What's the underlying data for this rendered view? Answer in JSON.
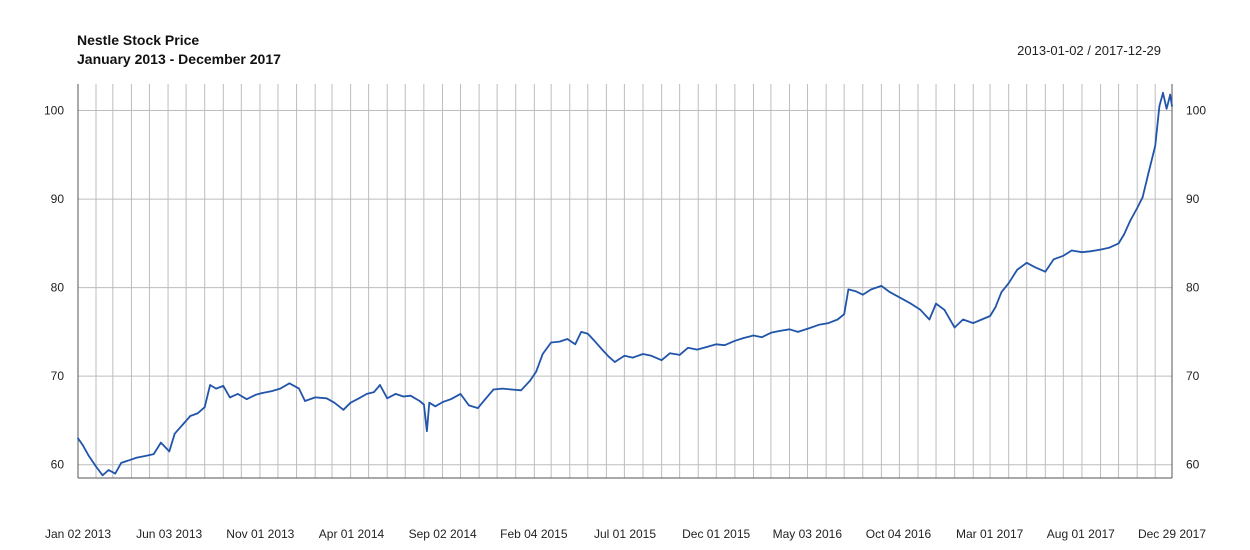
{
  "header": {
    "title": "Nestle Stock Price",
    "subtitle": "January 2013 - December 2017",
    "date_range": "2013-01-02 / 2017-12-29"
  },
  "colors": {
    "series": "#2255aa",
    "grid": "#bdbdbd",
    "axis": "#555555"
  },
  "chart_data": {
    "type": "line",
    "title": "Nestle Stock Price",
    "subtitle": "January 2013 - December 2017",
    "xlabel": "",
    "ylabel": "",
    "ylim": [
      58.5,
      103
    ],
    "yticks": [
      60,
      70,
      80,
      90,
      100
    ],
    "y_axis_both_sides": true,
    "x_tick_labels": [
      "Jan 02 2013",
      "Jun 03 2013",
      "Nov 01 2013",
      "Apr 01 2014",
      "Sep 02 2014",
      "Feb 04 2015",
      "Jul 01 2015",
      "Dec 01 2015",
      "May 03 2016",
      "Oct 04 2016",
      "Mar 01 2017",
      "Aug 01 2017",
      "Dec 29 2017"
    ],
    "grid": true,
    "legend": "none",
    "series": [
      {
        "values": [
          [
            "2013-01-02",
            63.0
          ],
          [
            "2013-01-10",
            62.2
          ],
          [
            "2013-01-20",
            61.0
          ],
          [
            "2013-02-01",
            59.8
          ],
          [
            "2013-02-12",
            58.8
          ],
          [
            "2013-02-22",
            59.4
          ],
          [
            "2013-03-05",
            59.0
          ],
          [
            "2013-03-15",
            60.2
          ],
          [
            "2013-03-28",
            60.5
          ],
          [
            "2013-04-10",
            60.8
          ],
          [
            "2013-04-25",
            61.0
          ],
          [
            "2013-05-08",
            61.2
          ],
          [
            "2013-05-20",
            62.5
          ],
          [
            "2013-06-03",
            61.5
          ],
          [
            "2013-06-12",
            63.5
          ],
          [
            "2013-06-25",
            64.5
          ],
          [
            "2013-07-08",
            65.5
          ],
          [
            "2013-07-20",
            65.8
          ],
          [
            "2013-08-01",
            66.5
          ],
          [
            "2013-08-10",
            69.0
          ],
          [
            "2013-08-20",
            68.6
          ],
          [
            "2013-09-01",
            68.9
          ],
          [
            "2013-09-12",
            67.6
          ],
          [
            "2013-09-25",
            68.0
          ],
          [
            "2013-10-10",
            67.4
          ],
          [
            "2013-10-25",
            67.9
          ],
          [
            "2013-11-05",
            68.1
          ],
          [
            "2013-11-20",
            68.3
          ],
          [
            "2013-12-05",
            68.6
          ],
          [
            "2013-12-20",
            69.2
          ],
          [
            "2014-01-05",
            68.6
          ],
          [
            "2014-01-15",
            67.2
          ],
          [
            "2014-02-01",
            67.6
          ],
          [
            "2014-02-20",
            67.5
          ],
          [
            "2014-03-05",
            67.0
          ],
          [
            "2014-03-20",
            66.2
          ],
          [
            "2014-04-01",
            67.0
          ],
          [
            "2014-04-15",
            67.5
          ],
          [
            "2014-04-28",
            68.0
          ],
          [
            "2014-05-10",
            68.2
          ],
          [
            "2014-05-20",
            69.0
          ],
          [
            "2014-06-01",
            67.5
          ],
          [
            "2014-06-15",
            68.0
          ],
          [
            "2014-06-28",
            67.7
          ],
          [
            "2014-07-10",
            67.8
          ],
          [
            "2014-07-25",
            67.2
          ],
          [
            "2014-08-01",
            66.8
          ],
          [
            "2014-08-06",
            63.8
          ],
          [
            "2014-08-10",
            67.0
          ],
          [
            "2014-08-20",
            66.6
          ],
          [
            "2014-09-02",
            67.1
          ],
          [
            "2014-09-15",
            67.4
          ],
          [
            "2014-10-01",
            68.0
          ],
          [
            "2014-10-15",
            66.7
          ],
          [
            "2014-10-30",
            66.4
          ],
          [
            "2014-11-10",
            67.3
          ],
          [
            "2014-11-25",
            68.5
          ],
          [
            "2014-12-10",
            68.6
          ],
          [
            "2014-12-25",
            68.5
          ],
          [
            "2015-01-10",
            68.4
          ],
          [
            "2015-01-25",
            69.5
          ],
          [
            "2015-02-04",
            70.5
          ],
          [
            "2015-02-15",
            72.5
          ],
          [
            "2015-03-01",
            73.8
          ],
          [
            "2015-03-15",
            73.9
          ],
          [
            "2015-03-28",
            74.2
          ],
          [
            "2015-04-10",
            73.6
          ],
          [
            "2015-04-20",
            75.0
          ],
          [
            "2015-05-01",
            74.8
          ],
          [
            "2015-05-12",
            74.0
          ],
          [
            "2015-05-25",
            73.0
          ],
          [
            "2015-06-05",
            72.2
          ],
          [
            "2015-06-15",
            71.6
          ],
          [
            "2015-07-01",
            72.3
          ],
          [
            "2015-07-15",
            72.1
          ],
          [
            "2015-08-01",
            72.5
          ],
          [
            "2015-08-15",
            72.3
          ],
          [
            "2015-09-01",
            71.8
          ],
          [
            "2015-09-15",
            72.6
          ],
          [
            "2015-10-01",
            72.4
          ],
          [
            "2015-10-15",
            73.2
          ],
          [
            "2015-10-30",
            73.0
          ],
          [
            "2015-11-15",
            73.3
          ],
          [
            "2015-12-01",
            73.6
          ],
          [
            "2015-12-15",
            73.5
          ],
          [
            "2016-01-01",
            74.0
          ],
          [
            "2016-01-15",
            74.3
          ],
          [
            "2016-02-01",
            74.6
          ],
          [
            "2016-02-15",
            74.4
          ],
          [
            "2016-03-01",
            74.9
          ],
          [
            "2016-03-15",
            75.1
          ],
          [
            "2016-04-01",
            75.3
          ],
          [
            "2016-04-15",
            75.0
          ],
          [
            "2016-05-03",
            75.4
          ],
          [
            "2016-05-20",
            75.8
          ],
          [
            "2016-06-05",
            76.0
          ],
          [
            "2016-06-20",
            76.4
          ],
          [
            "2016-07-01",
            77.0
          ],
          [
            "2016-07-08",
            79.8
          ],
          [
            "2016-07-20",
            79.6
          ],
          [
            "2016-08-01",
            79.2
          ],
          [
            "2016-08-15",
            79.8
          ],
          [
            "2016-09-01",
            80.2
          ],
          [
            "2016-09-15",
            79.5
          ],
          [
            "2016-10-04",
            78.8
          ],
          [
            "2016-10-20",
            78.2
          ],
          [
            "2016-11-05",
            77.5
          ],
          [
            "2016-11-20",
            76.4
          ],
          [
            "2016-12-01",
            78.2
          ],
          [
            "2016-12-15",
            77.5
          ],
          [
            "2017-01-01",
            75.5
          ],
          [
            "2017-01-15",
            76.4
          ],
          [
            "2017-02-01",
            76.0
          ],
          [
            "2017-02-15",
            76.4
          ],
          [
            "2017-03-01",
            76.8
          ],
          [
            "2017-03-10",
            77.8
          ],
          [
            "2017-03-20",
            79.5
          ],
          [
            "2017-04-01",
            80.5
          ],
          [
            "2017-04-15",
            82.0
          ],
          [
            "2017-05-01",
            82.8
          ],
          [
            "2017-05-15",
            82.3
          ],
          [
            "2017-06-01",
            81.8
          ],
          [
            "2017-06-15",
            83.2
          ],
          [
            "2017-07-01",
            83.6
          ],
          [
            "2017-07-15",
            84.2
          ],
          [
            "2017-08-01",
            84.0
          ],
          [
            "2017-08-15",
            84.1
          ],
          [
            "2017-09-01",
            84.3
          ],
          [
            "2017-09-15",
            84.5
          ],
          [
            "2017-10-01",
            85.0
          ],
          [
            "2017-10-10",
            86.0
          ],
          [
            "2017-10-20",
            87.5
          ],
          [
            "2017-11-01",
            89.0
          ],
          [
            "2017-11-10",
            90.2
          ],
          [
            "2017-11-20",
            93.0
          ],
          [
            "2017-12-01",
            96.0
          ],
          [
            "2017-12-08",
            100.5
          ],
          [
            "2017-12-14",
            102.0
          ],
          [
            "2017-12-20",
            100.2
          ],
          [
            "2017-12-26",
            101.8
          ],
          [
            "2017-12-29",
            100.5
          ]
        ]
      }
    ]
  }
}
